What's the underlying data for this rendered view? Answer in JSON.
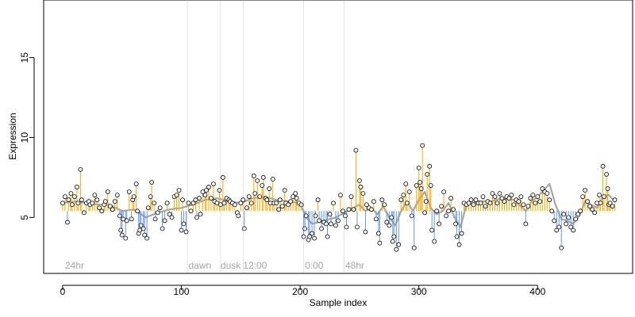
{
  "chart_data": {
    "type": "scatter",
    "xlabel": "Sample index",
    "ylabel": "Expression",
    "xlim": [
      -16,
      480
    ],
    "ylim": [
      1.5,
      18.6
    ],
    "x_ticks": [
      0,
      100,
      200,
      300,
      400
    ],
    "y_ticks": [
      5,
      10,
      15
    ],
    "x_tick_labels": [
      "0",
      "100",
      "200",
      "300",
      "400"
    ],
    "y_tick_labels": [
      "5",
      "10",
      "15"
    ],
    "baseline": 5.4,
    "grid": false,
    "legend": "none",
    "vertical_markers": [
      105,
      133,
      152,
      203,
      237
    ],
    "annotations": [
      {
        "x": 2,
        "y": 2.0,
        "text": "24hr"
      },
      {
        "x": 106,
        "y": 2.0,
        "text": "dawn"
      },
      {
        "x": 133,
        "y": 2.0,
        "text": "dusk"
      },
      {
        "x": 152,
        "y": 2.0,
        "text": "12:00"
      },
      {
        "x": 204,
        "y": 2.0,
        "text": "0:00"
      },
      {
        "x": 238,
        "y": 2.0,
        "text": "48hr"
      }
    ],
    "colors": {
      "above": "#ffa500",
      "below": "#6495ed",
      "marker": "#a6a6a6",
      "smooth": "#a6a6a6",
      "point_fill": "#ffffff",
      "point_stroke": "#000000"
    },
    "points": [
      [
        0,
        5.9
      ],
      [
        2,
        6.3
      ],
      [
        4,
        4.7
      ],
      [
        5,
        6.1
      ],
      [
        7,
        6.5
      ],
      [
        8,
        5.8
      ],
      [
        10,
        6.3
      ],
      [
        12,
        6.9
      ],
      [
        13,
        5.9
      ],
      [
        15,
        8.0
      ],
      [
        16,
        6.1
      ],
      [
        18,
        5.3
      ],
      [
        20,
        5.9
      ],
      [
        22,
        6.0
      ],
      [
        23,
        5.8
      ],
      [
        25,
        5.9
      ],
      [
        27,
        6.4
      ],
      [
        29,
        6.1
      ],
      [
        31,
        5.6
      ],
      [
        33,
        5.4
      ],
      [
        35,
        5.8
      ],
      [
        36,
        6.0
      ],
      [
        38,
        6.6
      ],
      [
        40,
        5.7
      ],
      [
        42,
        5.5
      ],
      [
        44,
        6.0
      ],
      [
        46,
        6.4
      ],
      [
        48,
        5.1
      ],
      [
        49,
        4.2
      ],
      [
        50,
        3.9
      ],
      [
        51,
        4.9
      ],
      [
        53,
        3.7
      ],
      [
        54,
        4.8
      ],
      [
        56,
        6.6
      ],
      [
        58,
        4.9
      ],
      [
        59,
        6.1
      ],
      [
        60,
        6.3
      ],
      [
        62,
        7.1
      ],
      [
        63,
        5.4
      ],
      [
        64,
        4.0
      ],
      [
        65,
        4.2
      ],
      [
        66,
        4.5
      ],
      [
        68,
        4.3
      ],
      [
        69,
        3.9
      ],
      [
        71,
        3.7
      ],
      [
        72,
        5.6
      ],
      [
        74,
        6.3
      ],
      [
        75,
        7.2
      ],
      [
        77,
        5.9
      ],
      [
        78,
        4.9
      ],
      [
        80,
        5.3
      ],
      [
        82,
        5.6
      ],
      [
        84,
        4.3
      ],
      [
        86,
        4.8
      ],
      [
        88,
        5.9
      ],
      [
        90,
        5.2
      ],
      [
        92,
        5.0
      ],
      [
        94,
        6.3
      ],
      [
        96,
        6.4
      ],
      [
        98,
        6.7
      ],
      [
        100,
        4.2
      ],
      [
        101,
        6.1
      ],
      [
        102,
        4.6
      ],
      [
        104,
        4.1
      ],
      [
        106,
        5.9
      ],
      [
        108,
        5.4
      ],
      [
        110,
        5.9
      ],
      [
        112,
        6.1
      ],
      [
        113,
        5.0
      ],
      [
        115,
        6.2
      ],
      [
        116,
        5.2
      ],
      [
        118,
        6.6
      ],
      [
        120,
        6.4
      ],
      [
        121,
        6.7
      ],
      [
        123,
        6.9
      ],
      [
        125,
        6.2
      ],
      [
        127,
        7.1
      ],
      [
        128,
        6.0
      ],
      [
        130,
        5.9
      ],
      [
        132,
        6.7
      ],
      [
        133,
        5.8
      ],
      [
        135,
        7.5
      ],
      [
        136,
        5.9
      ],
      [
        138,
        6.2
      ],
      [
        140,
        6.1
      ],
      [
        141,
        6.0
      ],
      [
        143,
        5.9
      ],
      [
        145,
        5.8
      ],
      [
        147,
        5.3
      ],
      [
        148,
        5.1
      ],
      [
        150,
        5.9
      ],
      [
        152,
        6.1
      ],
      [
        153,
        4.3
      ],
      [
        155,
        5.6
      ],
      [
        157,
        6.3
      ],
      [
        159,
        5.9
      ],
      [
        161,
        7.6
      ],
      [
        162,
        6.5
      ],
      [
        164,
        7.3
      ],
      [
        166,
        6.3
      ],
      [
        168,
        7.0
      ],
      [
        169,
        7.5
      ],
      [
        171,
        6.2
      ],
      [
        172,
        6.1
      ],
      [
        174,
        6.8
      ],
      [
        175,
        5.9
      ],
      [
        177,
        7.4
      ],
      [
        178,
        5.9
      ],
      [
        180,
        5.9
      ],
      [
        182,
        5.5
      ],
      [
        183,
        6.1
      ],
      [
        185,
        5.7
      ],
      [
        187,
        6.7
      ],
      [
        188,
        5.9
      ],
      [
        190,
        5.8
      ],
      [
        192,
        6.0
      ],
      [
        194,
        6.3
      ],
      [
        196,
        6.5
      ],
      [
        197,
        6.2
      ],
      [
        199,
        5.9
      ],
      [
        201,
        5.8
      ],
      [
        203,
        3.8
      ],
      [
        204,
        4.3
      ],
      [
        205,
        5.1
      ],
      [
        207,
        3.6
      ],
      [
        208,
        3.8
      ],
      [
        210,
        4.0
      ],
      [
        212,
        3.7
      ],
      [
        213,
        5.1
      ],
      [
        215,
        6.1
      ],
      [
        216,
        4.8
      ],
      [
        218,
        4.3
      ],
      [
        220,
        4.7
      ],
      [
        222,
        4.6
      ],
      [
        223,
        3.8
      ],
      [
        225,
        5.2
      ],
      [
        226,
        4.6
      ],
      [
        228,
        5.9
      ],
      [
        230,
        4.5
      ],
      [
        232,
        4.8
      ],
      [
        234,
        6.4
      ],
      [
        236,
        5.4
      ],
      [
        238,
        5.1
      ],
      [
        239,
        4.4
      ],
      [
        241,
        5.5
      ],
      [
        243,
        6.3
      ],
      [
        245,
        5.5
      ],
      [
        247,
        9.2
      ],
      [
        248,
        4.4
      ],
      [
        250,
        7.3
      ],
      [
        251,
        6.9
      ],
      [
        253,
        6.5
      ],
      [
        255,
        4.1
      ],
      [
        256,
        5.8
      ],
      [
        258,
        5.6
      ],
      [
        260,
        5.5
      ],
      [
        262,
        6.0
      ],
      [
        264,
        4.9
      ],
      [
        266,
        4.0
      ],
      [
        267,
        3.4
      ],
      [
        269,
        6.1
      ],
      [
        271,
        5.8
      ],
      [
        273,
        4.7
      ],
      [
        275,
        4.5
      ],
      [
        277,
        5.0
      ],
      [
        278,
        3.5
      ],
      [
        279,
        3.8
      ],
      [
        281,
        3.0
      ],
      [
        283,
        3.3
      ],
      [
        285,
        6.1
      ],
      [
        287,
        6.4
      ],
      [
        289,
        7.1
      ],
      [
        290,
        5.9
      ],
      [
        292,
        6.6
      ],
      [
        294,
        5.1
      ],
      [
        296,
        3.1
      ],
      [
        298,
        7.0
      ],
      [
        300,
        8.1
      ],
      [
        301,
        7.2
      ],
      [
        302,
        6.8
      ],
      [
        303,
        9.5
      ],
      [
        305,
        5.3
      ],
      [
        306,
        6.0
      ],
      [
        307,
        7.7
      ],
      [
        309,
        8.2
      ],
      [
        310,
        7.0
      ],
      [
        311,
        4.2
      ],
      [
        313,
        3.5
      ],
      [
        315,
        5.4
      ],
      [
        317,
        4.6
      ],
      [
        319,
        5.7
      ],
      [
        321,
        6.6
      ],
      [
        323,
        5.1
      ],
      [
        325,
        5.4
      ],
      [
        327,
        6.2
      ],
      [
        329,
        5.5
      ],
      [
        331,
        4.6
      ],
      [
        332,
        3.8
      ],
      [
        334,
        3.3
      ],
      [
        336,
        4.0
      ],
      [
        338,
        5.9
      ],
      [
        340,
        5.8
      ],
      [
        342,
        5.9
      ],
      [
        344,
        6.1
      ],
      [
        346,
        5.8
      ],
      [
        348,
        6.1
      ],
      [
        350,
        5.9
      ],
      [
        352,
        5.9
      ],
      [
        354,
        6.3
      ],
      [
        356,
        5.7
      ],
      [
        358,
        6.0
      ],
      [
        360,
        5.9
      ],
      [
        362,
        6.5
      ],
      [
        364,
        6.3
      ],
      [
        366,
        5.9
      ],
      [
        368,
        6.5
      ],
      [
        370,
        6.2
      ],
      [
        372,
        6.0
      ],
      [
        374,
        6.3
      ],
      [
        376,
        6.2
      ],
      [
        378,
        6.4
      ],
      [
        380,
        5.8
      ],
      [
        382,
        6.1
      ],
      [
        384,
        6.0
      ],
      [
        386,
        6.3
      ],
      [
        388,
        5.8
      ],
      [
        390,
        4.6
      ],
      [
        392,
        5.7
      ],
      [
        394,
        6.2
      ],
      [
        396,
        6.4
      ],
      [
        398,
        5.9
      ],
      [
        400,
        6.3
      ],
      [
        402,
        6.0
      ],
      [
        404,
        6.8
      ],
      [
        406,
        6.6
      ],
      [
        408,
        6.5
      ],
      [
        410,
        6.1
      ],
      [
        412,
        5.4
      ],
      [
        414,
        4.8
      ],
      [
        416,
        4.2
      ],
      [
        418,
        4.4
      ],
      [
        420,
        3.1
      ],
      [
        422,
        5.2
      ],
      [
        424,
        4.6
      ],
      [
        426,
        5.0
      ],
      [
        428,
        4.4
      ],
      [
        430,
        4.2
      ],
      [
        432,
        4.9
      ],
      [
        434,
        5.2
      ],
      [
        436,
        5.4
      ],
      [
        438,
        6.3
      ],
      [
        440,
        6.7
      ],
      [
        442,
        6.0
      ],
      [
        444,
        5.7
      ],
      [
        446,
        5.5
      ],
      [
        448,
        5.3
      ],
      [
        450,
        5.9
      ],
      [
        452,
        6.4
      ],
      [
        453,
        5.9
      ],
      [
        455,
        8.2
      ],
      [
        456,
        6.3
      ],
      [
        458,
        7.7
      ],
      [
        459,
        6.8
      ],
      [
        460,
        5.8
      ],
      [
        461,
        5.9
      ],
      [
        463,
        5.7
      ],
      [
        465,
        6.1
      ]
    ],
    "smooth": [
      [
        0,
        5.9
      ],
      [
        10,
        6.0
      ],
      [
        20,
        5.9
      ],
      [
        30,
        5.8
      ],
      [
        40,
        5.8
      ],
      [
        50,
        5.4
      ],
      [
        60,
        5.5
      ],
      [
        70,
        5.0
      ],
      [
        80,
        5.3
      ],
      [
        90,
        5.5
      ],
      [
        100,
        5.6
      ],
      [
        110,
        5.8
      ],
      [
        120,
        6.1
      ],
      [
        130,
        6.2
      ],
      [
        140,
        6.0
      ],
      [
        150,
        5.9
      ],
      [
        160,
        6.2
      ],
      [
        170,
        6.3
      ],
      [
        180,
        6.1
      ],
      [
        190,
        6.0
      ],
      [
        200,
        5.9
      ],
      [
        205,
        5.0
      ],
      [
        210,
        4.6
      ],
      [
        215,
        4.7
      ],
      [
        220,
        4.8
      ],
      [
        225,
        4.9
      ],
      [
        230,
        5.0
      ],
      [
        235,
        5.2
      ],
      [
        240,
        5.4
      ],
      [
        245,
        5.6
      ],
      [
        250,
        5.8
      ],
      [
        255,
        5.4
      ],
      [
        260,
        5.6
      ],
      [
        265,
        5.2
      ],
      [
        270,
        5.7
      ],
      [
        275,
        5.0
      ],
      [
        280,
        4.5
      ],
      [
        285,
        5.4
      ],
      [
        290,
        6.0
      ],
      [
        295,
        5.4
      ],
      [
        300,
        6.1
      ],
      [
        305,
        6.6
      ],
      [
        310,
        5.6
      ],
      [
        315,
        5.2
      ],
      [
        320,
        5.4
      ],
      [
        325,
        5.9
      ],
      [
        330,
        5.0
      ],
      [
        335,
        4.4
      ],
      [
        340,
        5.8
      ],
      [
        350,
        6.0
      ],
      [
        360,
        6.0
      ],
      [
        370,
        6.2
      ],
      [
        380,
        6.1
      ],
      [
        390,
        5.4
      ],
      [
        395,
        6.0
      ],
      [
        400,
        6.3
      ],
      [
        405,
        6.7
      ],
      [
        410,
        7.1
      ],
      [
        415,
        5.8
      ],
      [
        420,
        4.9
      ],
      [
        425,
        4.8
      ],
      [
        430,
        4.6
      ],
      [
        435,
        5.1
      ],
      [
        440,
        6.0
      ],
      [
        445,
        5.8
      ],
      [
        450,
        5.6
      ],
      [
        455,
        6.3
      ],
      [
        460,
        6.4
      ],
      [
        465,
        6.0
      ]
    ]
  }
}
